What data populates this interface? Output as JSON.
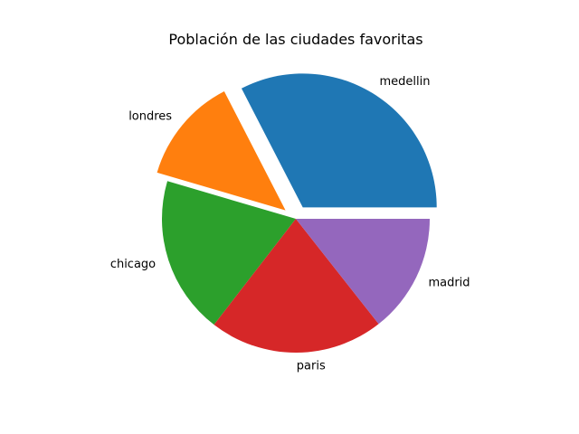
{
  "chart_data": {
    "type": "pie",
    "title": "Población de las ciudades favoritas",
    "labels": [
      "medellin",
      "londres",
      "chicago",
      "paris",
      "madrid"
    ],
    "values": [
      32.6,
      12.9,
      19.1,
      21.1,
      14.4
    ],
    "colors": [
      "#1f77b4",
      "#ff7f0e",
      "#2ca02c",
      "#d62728",
      "#9467bd"
    ],
    "explode": [
      0.1,
      0.1,
      0,
      0,
      0
    ],
    "start_angle": 0,
    "direction": "counterclockwise",
    "legend": false
  }
}
